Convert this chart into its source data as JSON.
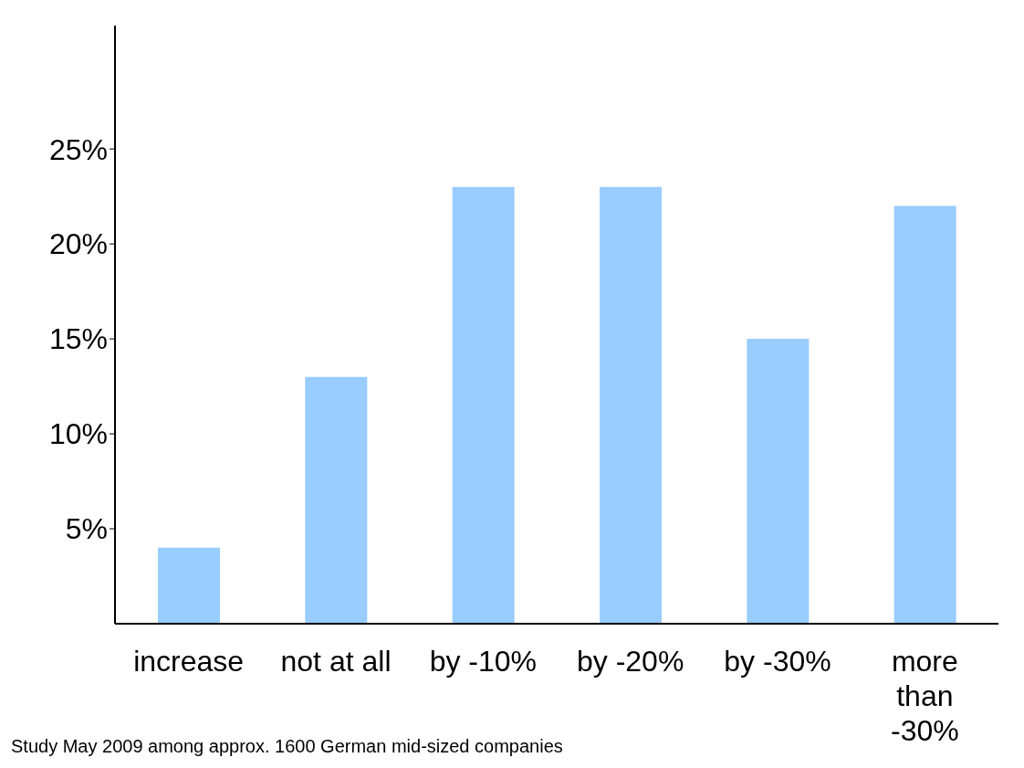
{
  "chart_data": {
    "type": "bar",
    "categories": [
      "increase",
      "not at all",
      "by -10%",
      "by -20%",
      "by -30%",
      "more than -30%"
    ],
    "values": [
      4,
      13,
      23,
      23,
      15,
      22
    ],
    "color": "#99ccff",
    "ylim": [
      0,
      31.5
    ],
    "yticks": [
      {
        "value": 5,
        "label": "5%"
      },
      {
        "value": 10,
        "label": "10%"
      },
      {
        "value": 15,
        "label": "15%"
      },
      {
        "value": 20,
        "label": "20%"
      },
      {
        "value": 25,
        "label": "25%"
      }
    ],
    "grid": false,
    "annotations": [
      "Study May 2009 among approx. 1600 German mid-sized companies"
    ]
  }
}
